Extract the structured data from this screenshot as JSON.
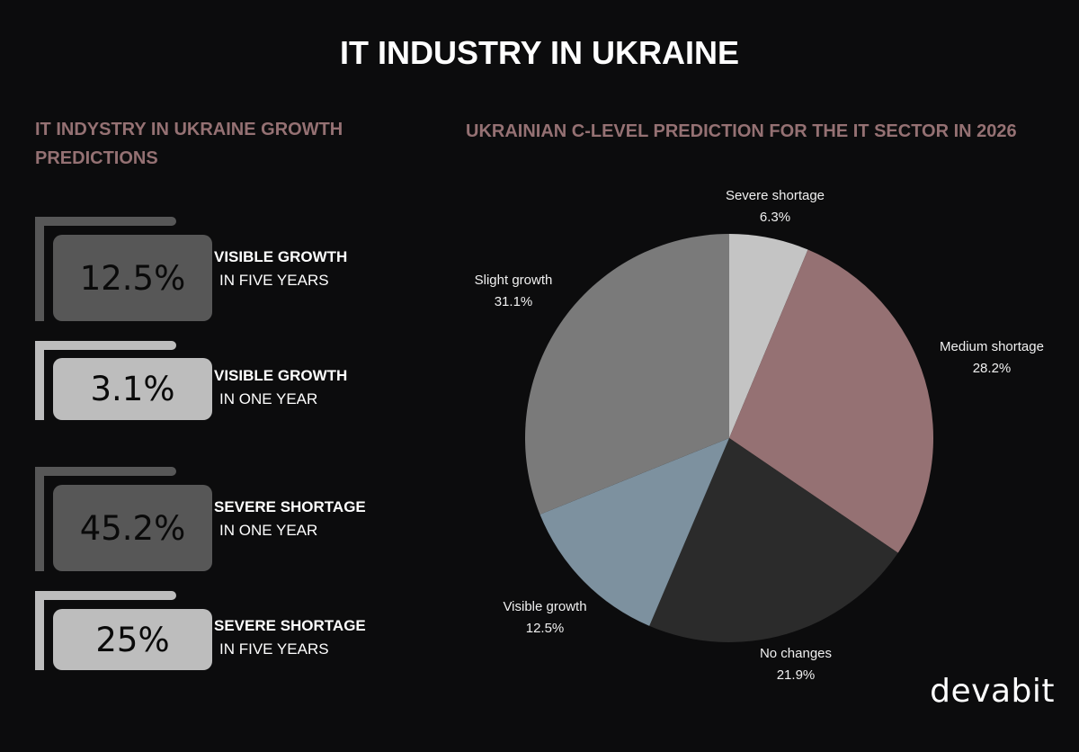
{
  "header": {
    "title": "IT INDUSTRY IN UKRAINE"
  },
  "left_panel": {
    "title": "IT INDYSTRY IN UKRAINE GROWTH PREDICTIONS",
    "stats": [
      {
        "value": "12.5%",
        "label_bold": "VISIBLE GROWTH",
        "label_sub": "IN FIVE YEARS",
        "color": "#575757",
        "frame_color": "#575757"
      },
      {
        "value": "3.1%",
        "label_bold": "VISIBLE GROWTH",
        "label_sub": "IN ONE YEAR",
        "color": "#bdbdbd",
        "frame_color": "#bdbdbd"
      },
      {
        "value": "45.2%",
        "label_bold": "SEVERE SHORTAGE",
        "label_sub": "IN ONE YEAR",
        "color": "#575757",
        "frame_color": "#575757"
      },
      {
        "value": "25%",
        "label_bold": "SEVERE SHORTAGE",
        "label_sub": "IN FIVE YEARS",
        "color": "#bdbdbd",
        "frame_color": "#bdbdbd"
      }
    ]
  },
  "right_panel": {
    "title": "UKRAINIAN C-LEVEL PREDICTION FOR THE IT SECTOR IN 2026"
  },
  "chart_data": {
    "type": "pie",
    "title": "UKRAINIAN C-LEVEL PREDICTION FOR THE IT SECTOR IN 2026",
    "start_angle": "top, clockwise",
    "slices": [
      {
        "label": "Severe shortage",
        "value": 6.3,
        "display": "6.3%",
        "color": "#c4c4c4"
      },
      {
        "label": "Medium shortage",
        "value": 28.2,
        "display": "28.2%",
        "color": "#957173"
      },
      {
        "label": "No changes",
        "value": 21.9,
        "display": "21.9%",
        "color": "#2b2b2b"
      },
      {
        "label": "Visible growth",
        "value": 12.5,
        "display": "12.5%",
        "color": "#7d919f"
      },
      {
        "label": "Slight growth",
        "value": 31.1,
        "display": "31.1%",
        "color": "#7a7a7a"
      }
    ]
  },
  "branding": {
    "logo": "devabit"
  }
}
